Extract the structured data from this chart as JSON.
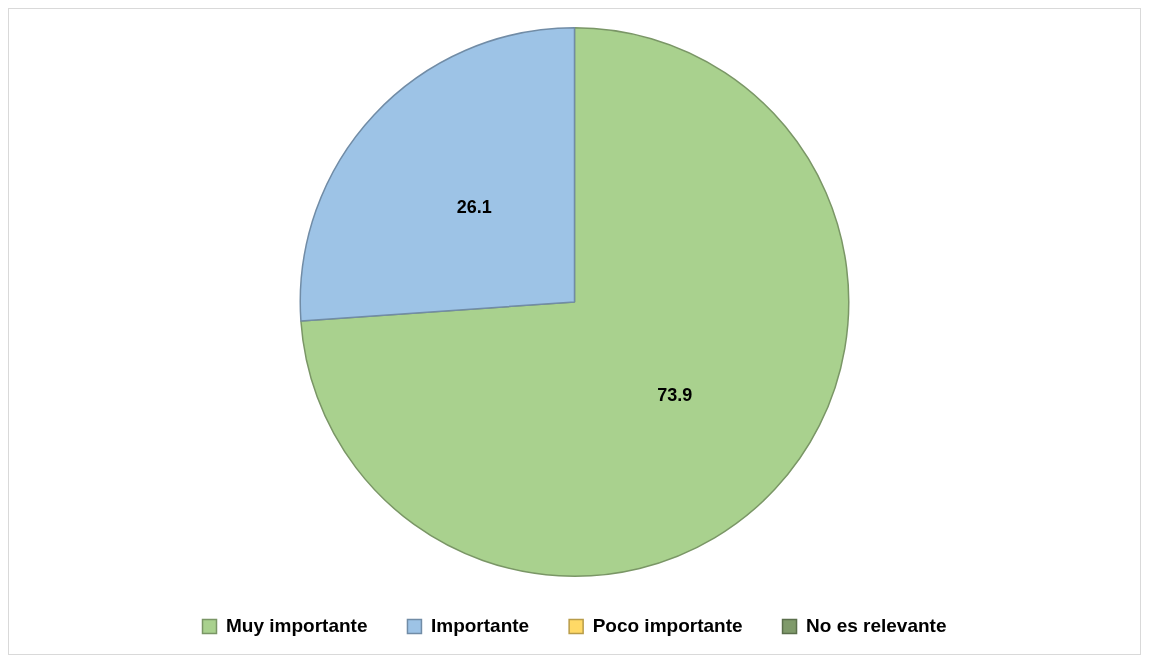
{
  "chart_data": {
    "type": "pie",
    "categories": [
      "Muy importante",
      "Importante",
      "Poco importante",
      "No es relevante"
    ],
    "values": [
      73.9,
      26.1,
      0,
      0
    ],
    "colors": [
      "#a9d18e",
      "#9dc3e6",
      "#ffd966",
      "#7f9a6a"
    ],
    "value_labels": [
      "73.9",
      "26.1",
      null,
      null
    ],
    "legend": "bottom"
  }
}
